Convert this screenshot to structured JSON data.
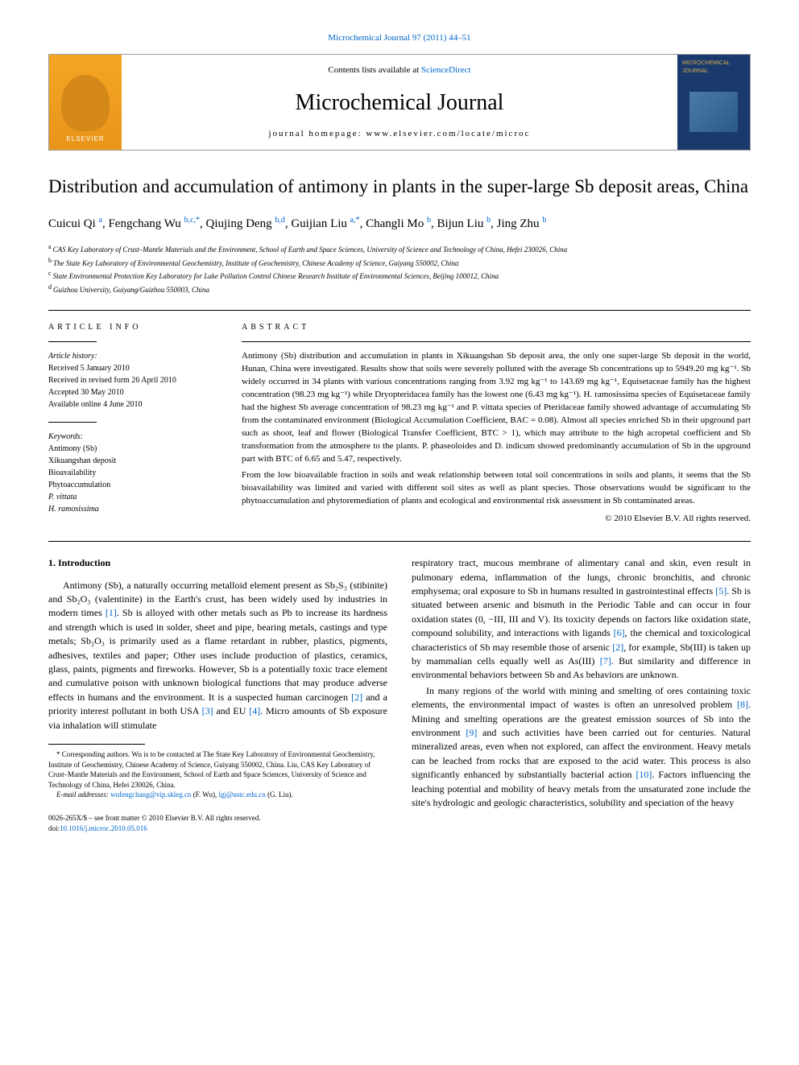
{
  "topLink": {
    "journal": "Microchemical Journal",
    "citation": "97 (2011) 44–51"
  },
  "banner": {
    "elsevierLabel": "ELSEVIER",
    "contentsPrefix": "Contents lists available at ",
    "contentsLink": "ScienceDirect",
    "journalName": "Microchemical Journal",
    "homepagePrefix": "journal homepage: ",
    "homepageUrl": "www.elsevier.com/locate/microc",
    "coverTitle": "MICROCHEMICAL JOURNAL"
  },
  "title": "Distribution and accumulation of antimony in plants in the super-large Sb deposit areas, China",
  "authors": [
    {
      "name": "Cuicui Qi",
      "aff": "a"
    },
    {
      "name": "Fengchang Wu",
      "aff": "b,c,",
      "corr": "*"
    },
    {
      "name": "Qiujing Deng",
      "aff": "b,d"
    },
    {
      "name": "Guijian Liu",
      "aff": "a,",
      "corr": "*"
    },
    {
      "name": "Changli Mo",
      "aff": "b"
    },
    {
      "name": "Bijun Liu",
      "aff": "b"
    },
    {
      "name": "Jing Zhu",
      "aff": "b"
    }
  ],
  "affiliations": [
    {
      "key": "a",
      "text": "CAS Key Laboratory of Crust–Mantle Materials and the Environment, School of Earth and Space Sciences, University of Science and Technology of China, Hefei 230026, China"
    },
    {
      "key": "b",
      "text": "The State Key Laboratory of Environmental Geochemistry, Institute of Geochemistry, Chinese Academy of Science, Guiyang 550002, China"
    },
    {
      "key": "c",
      "text": "State Environmental Protection Key Laboratory for Lake Pollution Control Chinese Research Institute of Environmental Sciences, Beijing 100012, China"
    },
    {
      "key": "d",
      "text": "Guizhou University, Guiyang/Guizhou 550003, China"
    }
  ],
  "articleInfo": {
    "header": "ARTICLE INFO",
    "historyLabel": "Article history:",
    "history": [
      "Received 5 January 2010",
      "Received in revised form 26 April 2010",
      "Accepted 30 May 2010",
      "Available online 4 June 2010"
    ],
    "keywordsLabel": "Keywords:",
    "keywords": [
      "Antimony (Sb)",
      "Xikuangshan deposit",
      "Bioavailability",
      "Phytoaccumulation",
      "P. vittata",
      "H. ramosissima"
    ]
  },
  "abstract": {
    "header": "ABSTRACT",
    "p1": "Antimony (Sb) distribution and accumulation in plants in Xikuangshan Sb deposit area, the only one super-large Sb deposit in the world, Hunan, China were investigated. Results show that soils were severely polluted with the average Sb concentrations up to 5949.20 mg kg⁻¹. Sb widely occurred in 34 plants with various concentrations ranging from 3.92 mg kg⁻¹ to 143.69 mg kg⁻¹, Equisetaceae family has the highest concentration (98.23 mg kg⁻¹) while Dryopteridacea family has the lowest one (6.43 mg kg⁻¹). H. ramosissima species of Equisetaceae family had the highest Sb average concentration of 98.23 mg kg⁻¹ and P. vittata species of Pteridaceae family showed advantage of accumulating Sb from the contaminated environment (Biological Accumulation Coefficient, BAC = 0.08). Almost all species enriched Sb in their upground part such as shoot, leaf and flower (Biological Transfer Coefficient, BTC > 1), which may attribute to the high acropetal coefficient and Sb transformation from the atmosphere to the plants. P. phaseoloides and D. indicum showed predominantly accumulation of Sb in the upground part with BTC of 6.65 and 5.47, respectively.",
    "p2": "From the low bioavailable fraction in soils and weak relationship between total soil concentrations in soils and plants, it seems that the Sb bioavailability was limited and varied with different soil sites as well as plant species. Those observations would be significant to the phytoaccumulation and phytoremediation of plants and ecological and environmental risk assessment in Sb contaminated areas.",
    "copyright": "© 2010 Elsevier B.V. All rights reserved."
  },
  "body": {
    "heading1": "1. Introduction",
    "left": [
      {
        "type": "p",
        "segments": [
          {
            "t": "Antimony (Sb), a naturally occurring metalloid element present as Sb₂S₃ (stibinite) and Sb₂O₃ (valentinite) in the Earth's crust, has been widely used by industries in modern times "
          },
          {
            "t": "[1]",
            "link": true
          },
          {
            "t": ". Sb is alloyed with other metals such as Pb to increase its hardness and strength which is used in solder, sheet and pipe, bearing metals, castings and type metals; Sb₂O₃ is primarily used as a flame retardant in rubber, plastics, pigments, adhesives, textiles and paper; Other uses include production of plastics, ceramics, glass, paints, pigments and fireworks. However, Sb is a potentially toxic trace element and cumulative poison with unknown biological functions that may produce adverse effects in humans and the environment. It is a suspected human carcinogen "
          },
          {
            "t": "[2]",
            "link": true
          },
          {
            "t": " and a priority interest pollutant in both USA "
          },
          {
            "t": "[3]",
            "link": true
          },
          {
            "t": " and EU "
          },
          {
            "t": "[4]",
            "link": true
          },
          {
            "t": ". Micro amounts of Sb exposure via inhalation will stimulate"
          }
        ]
      }
    ],
    "rightSegments": [
      {
        "t": "respiratory tract, mucous membrane of alimentary canal and skin, even result in pulmonary edema, inflammation of the lungs, chronic bronchitis, and chronic emphysema; oral exposure to Sb in humans resulted in gastrointestinal effects "
      },
      {
        "t": "[5]",
        "link": true
      },
      {
        "t": ". Sb is situated between arsenic and bismuth in the Periodic Table and can occur in four oxidation states (0, −III, III and V). Its toxicity depends on factors like oxidation state, compound solubility, and interactions with ligands "
      },
      {
        "t": "[6]",
        "link": true
      },
      {
        "t": ", the chemical and toxicological characteristics of Sb may resemble those of arsenic "
      },
      {
        "t": "[2]",
        "link": true
      },
      {
        "t": ", for example, Sb(III) is taken up by mammalian cells equally well as As(III) "
      },
      {
        "t": "[7]",
        "link": true
      },
      {
        "t": ". But similarity and difference in environmental behaviors between Sb and As behaviors are unknown."
      }
    ],
    "rightP2Segments": [
      {
        "t": "In many regions of the world with mining and smelting of ores containing toxic elements, the environmental impact of wastes is often an unresolved problem "
      },
      {
        "t": "[8]",
        "link": true
      },
      {
        "t": ". Mining and smelting operations are the greatest emission sources of Sb into the environment "
      },
      {
        "t": "[9]",
        "link": true
      },
      {
        "t": " and such activities have been carried out for centuries. Natural mineralized areas, even when not explored, can affect the environment. Heavy metals can be leached from rocks that are exposed to the acid water. This process is also significantly enhanced by substantially bacterial action "
      },
      {
        "t": "[10]",
        "link": true
      },
      {
        "t": ". Factors influencing the leaching potential and mobility of heavy metals from the unsaturated zone include the site's hydrologic and geologic characteristics, solubility and speciation of the heavy"
      }
    ]
  },
  "footnote": {
    "corr": "* Corresponding authors. Wu is to be contacted at The State Key Laboratory of Environmental Geochemistry, Institute of Geochemistry, Chinese Academy of Science, Guiyang 550002, China. Liu, CAS Key Laboratory of Crust–Mantle Materials and the Environment, School of Earth and Space Sciences, University of Science and Technology of China, Hefei 230026, China.",
    "emailLabel": "E-mail addresses:",
    "email1": "wufengchang@vip.skleg.cn",
    "email1Name": "(F. Wu),",
    "email2": "lgj@ustc.edu.cn",
    "email2Name": "(G. Liu)."
  },
  "bottom": {
    "line1": "0026-265X/$ – see front matter © 2010 Elsevier B.V. All rights reserved.",
    "doiPrefix": "doi:",
    "doi": "10.1016/j.microc.2010.05.016"
  },
  "colors": {
    "link": "#0066cc",
    "elsevierBg": "#f5a623",
    "coverBg": "#1a3a6e"
  }
}
